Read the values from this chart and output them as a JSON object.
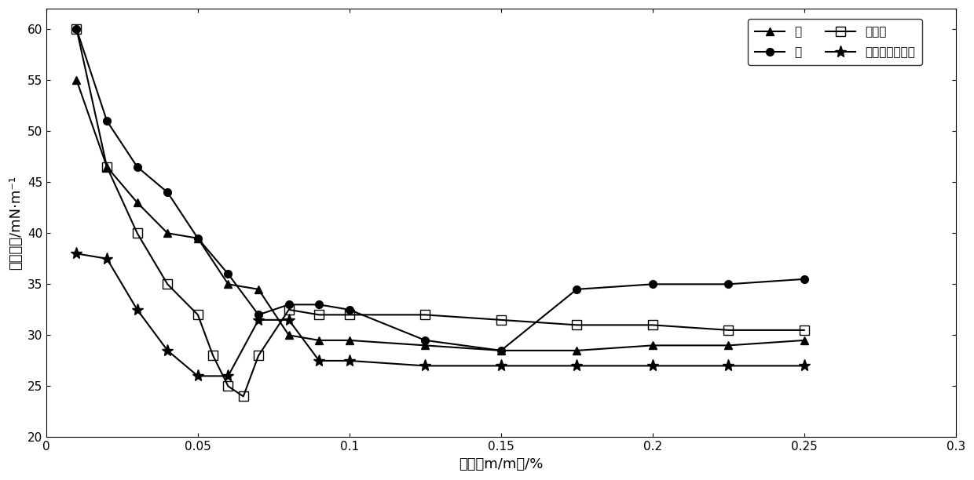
{
  "series": {
    "茎": {
      "x": [
        0.01,
        0.02,
        0.03,
        0.04,
        0.05,
        0.06,
        0.07,
        0.08,
        0.09,
        0.1,
        0.125,
        0.15,
        0.175,
        0.2,
        0.225,
        0.25
      ],
      "y": [
        55.0,
        46.5,
        43.0,
        40.0,
        39.5,
        35.0,
        34.5,
        30.0,
        29.5,
        29.5,
        29.0,
        28.5,
        28.5,
        29.0,
        29.0,
        29.5
      ],
      "marker": "^",
      "label": "茎"
    },
    "叶": {
      "x": [
        0.01,
        0.02,
        0.03,
        0.04,
        0.05,
        0.06,
        0.07,
        0.08,
        0.09,
        0.1,
        0.125,
        0.15,
        0.175,
        0.2,
        0.225,
        0.25
      ],
      "y": [
        60.0,
        51.0,
        46.5,
        44.0,
        39.5,
        36.0,
        32.0,
        33.0,
        33.0,
        32.5,
        29.5,
        28.5,
        34.5,
        35.0,
        35.0,
        35.5
      ],
      "marker": "o",
      "label": "叶"
    },
    "茎与叶": {
      "x": [
        0.01,
        0.02,
        0.03,
        0.04,
        0.05,
        0.055,
        0.06,
        0.065,
        0.07,
        0.08,
        0.09,
        0.1,
        0.125,
        0.15,
        0.175,
        0.2,
        0.225,
        0.25
      ],
      "y": [
        60.0,
        46.5,
        40.0,
        35.0,
        32.0,
        28.0,
        25.0,
        24.0,
        28.0,
        32.5,
        32.0,
        32.0,
        32.0,
        31.5,
        31.0,
        31.0,
        30.5,
        30.5
      ],
      "marker": "s",
      "label": "茎与叶"
    },
    "十二烷基硫酸钠": {
      "x": [
        0.01,
        0.02,
        0.03,
        0.04,
        0.05,
        0.06,
        0.07,
        0.08,
        0.09,
        0.1,
        0.125,
        0.15,
        0.175,
        0.2,
        0.225,
        0.25
      ],
      "y": [
        38.0,
        37.5,
        32.5,
        28.5,
        26.0,
        26.0,
        31.5,
        31.5,
        27.5,
        27.5,
        27.0,
        27.0,
        27.0,
        27.0,
        27.0,
        27.0
      ],
      "marker": "*",
      "label": "十二烷基硫酸钠"
    }
  },
  "xlabel": "浓度（m/m）/%",
  "ylabel": "表面张力/mN·m⁻¹",
  "xlim": [
    0,
    0.3
  ],
  "ylim": [
    20,
    62
  ],
  "xticks": [
    0,
    0.05,
    0.1,
    0.15,
    0.2,
    0.25,
    0.3
  ],
  "xtick_labels": [
    "0",
    "0.05",
    "0.1",
    "0.15",
    "0.2",
    "0.25",
    "0.3"
  ],
  "yticks": [
    20,
    25,
    30,
    35,
    40,
    45,
    50,
    55,
    60
  ],
  "ytick_labels": [
    "20",
    "25",
    "30",
    "35",
    "40",
    "45",
    "50",
    "55",
    "60"
  ],
  "background_color": "#ffffff",
  "fontsize_label": 13,
  "fontsize_tick": 11,
  "fontsize_legend": 11
}
